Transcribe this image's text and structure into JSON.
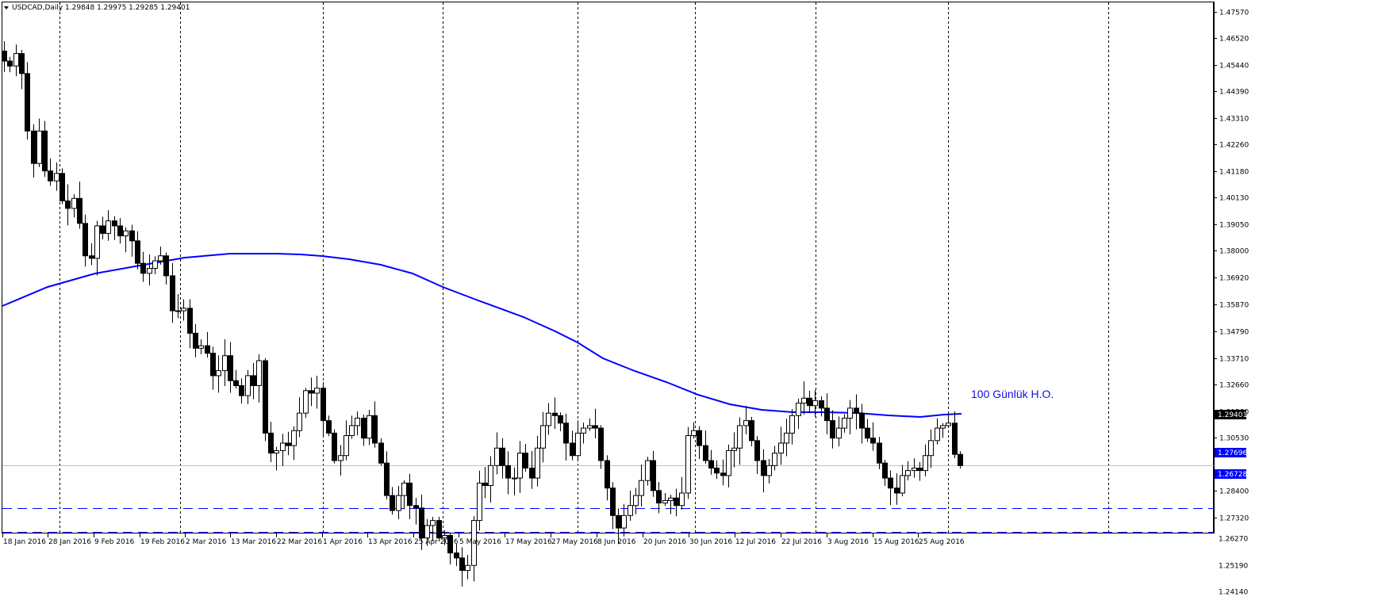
{
  "header": {
    "menu_icon": "triangle-down-icon",
    "symbol": "USDCAD,Daily",
    "ohlc": "1.29848 1.29975 1.29285 1.29401"
  },
  "annotations": {
    "ma_label": "100 Günlük H.O.",
    "ma_color": "#0000ff",
    "current_price": "1.29401",
    "support_1": "1.27696",
    "support_2": "1.26728",
    "hline_color": "#0000ff"
  },
  "colors": {
    "background": "#ffffff",
    "grid": "#000000",
    "bull_body": "#ffffff",
    "bear_body": "#000000",
    "ma_line": "#0000ff",
    "price_line": "#c0c0c0"
  },
  "chart_data": {
    "type": "candlestick",
    "title": "USDCAD,Daily",
    "xlabel": "",
    "ylabel": "",
    "ylim": [
      1.2414,
      1.4757
    ],
    "y_ticks": [
      "1.47570",
      "1.46520",
      "1.45440",
      "1.44390",
      "1.43310",
      "1.42260",
      "1.41180",
      "1.40130",
      "1.39050",
      "1.38000",
      "1.36920",
      "1.35870",
      "1.34790",
      "1.33710",
      "1.32660",
      "1.31580",
      "1.30530",
      "1.28400",
      "1.27320",
      "1.26270",
      "1.25190",
      "1.24140"
    ],
    "x_ticks": [
      "18 Jan 2016",
      "28 Jan 2016",
      "9 Feb 2016",
      "19 Feb 2016",
      "2 Mar 2016",
      "13 Mar 2016",
      "22 Mar 2016",
      "1 Apr 2016",
      "13 Apr 2016",
      "25 Apr 2016",
      "5 May 2016",
      "17 May 2016",
      "27 May 2016",
      "8 Jun 2016",
      "20 Jun 2016",
      "30 Jun 2016",
      "12 Jul 2016",
      "22 Jul 2016",
      "3 Aug 2016",
      "15 Aug 2016",
      "25 Aug 2016"
    ],
    "last_ohlc": {
      "open": 1.29848,
      "high": 1.29975,
      "low": 1.29285,
      "close": 1.29401
    },
    "horizontal_lines": [
      1.27696,
      1.26728
    ],
    "current_price_line": 1.29401,
    "ma_period": 100,
    "ma_label": "100 Günlük H.O.",
    "close_series": [
      1.456,
      1.454,
      1.459,
      1.451,
      1.428,
      1.415,
      1.428,
      1.412,
      1.408,
      1.411,
      1.4,
      1.397,
      1.401,
      1.391,
      1.378,
      1.377,
      1.39,
      1.387,
      1.392,
      1.39,
      1.386,
      1.388,
      1.384,
      1.375,
      1.371,
      1.373,
      1.376,
      1.378,
      1.37,
      1.356,
      1.356,
      1.357,
      1.347,
      1.341,
      1.342,
      1.339,
      1.33,
      1.332,
      1.338,
      1.328,
      1.326,
      1.322,
      1.33,
      1.326,
      1.336,
      1.307,
      1.299,
      1.3,
      1.303,
      1.302,
      1.308,
      1.315,
      1.324,
      1.323,
      1.325,
      1.312,
      1.307,
      1.296,
      1.298,
      1.306,
      1.31,
      1.313,
      1.305,
      1.314,
      1.303,
      1.295,
      1.282,
      1.276,
      1.282,
      1.287,
      1.278,
      1.277,
      1.265,
      1.27,
      1.272,
      1.265,
      1.266,
      1.259,
      1.257,
      1.252,
      1.254,
      1.272,
      1.287,
      1.286,
      1.294,
      1.301,
      1.294,
      1.289,
      1.289,
      1.299,
      1.293,
      1.289,
      1.301,
      1.31,
      1.315,
      1.314,
      1.311,
      1.303,
      1.298,
      1.307,
      1.309,
      1.31,
      1.309,
      1.296,
      1.285,
      1.274,
      1.269,
      1.274,
      1.278,
      1.282,
      1.288,
      1.296,
      1.284,
      1.279,
      1.28,
      1.281,
      1.278,
      1.283,
      1.306,
      1.308,
      1.302,
      1.296,
      1.293,
      1.291,
      1.29,
      1.3,
      1.301,
      1.31,
      1.312,
      1.304,
      1.296,
      1.29,
      1.294,
      1.299,
      1.303,
      1.307,
      1.314,
      1.319,
      1.321,
      1.318,
      1.32,
      1.317,
      1.312,
      1.305,
      1.309,
      1.313,
      1.317,
      1.315,
      1.309,
      1.305,
      1.303,
      1.295,
      1.289,
      1.285,
      1.283,
      1.29,
      1.292,
      1.293,
      1.292,
      1.298,
      1.304,
      1.309,
      1.31,
      1.311,
      1.2985,
      1.294
    ]
  }
}
